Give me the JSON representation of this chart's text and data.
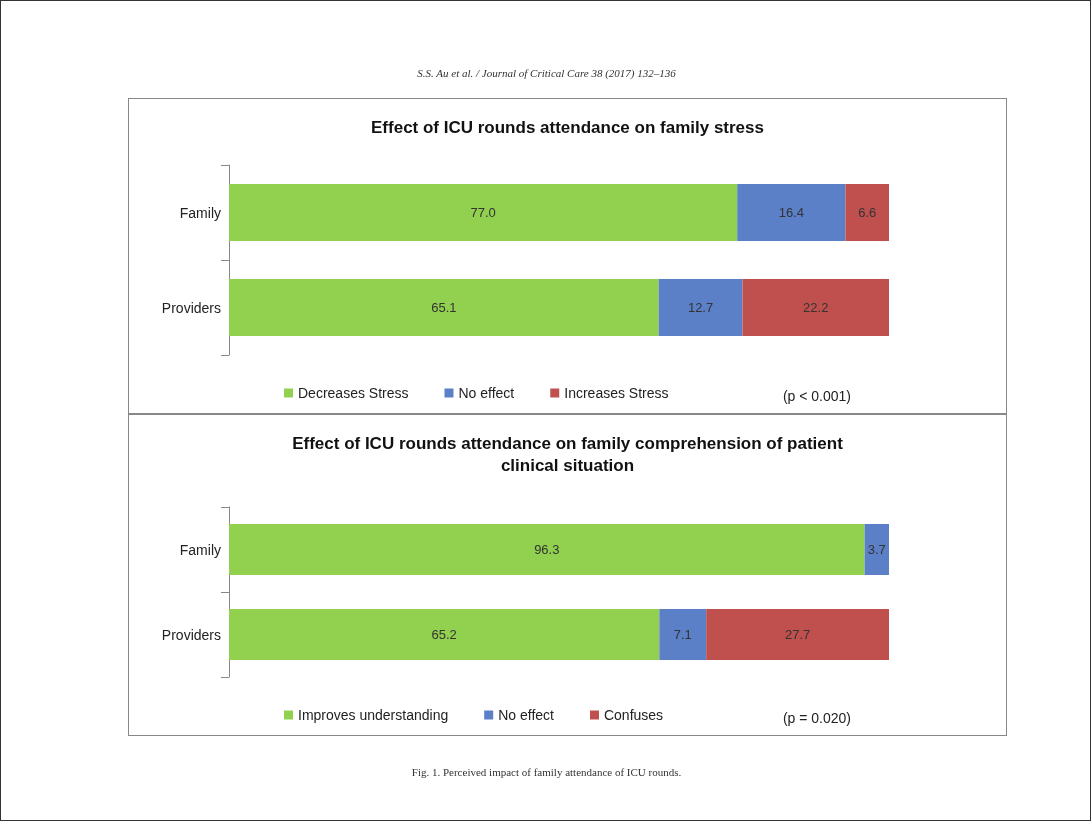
{
  "chart_data": [
    {
      "type": "bar",
      "orientation": "horizontal",
      "stacked": true,
      "title": "Effect of ICU rounds attendance on family stress",
      "categories": [
        "Family",
        "Providers"
      ],
      "series": [
        {
          "name": "Decreases Stress",
          "color": "#92d050",
          "values": [
            77.0,
            65.1
          ],
          "value_labels": [
            "77.0",
            "65.1"
          ]
        },
        {
          "name": "No effect",
          "color": "#5b80c8",
          "values": [
            16.4,
            12.7
          ],
          "value_labels": [
            "16.4",
            "12.7"
          ]
        },
        {
          "name": "Increases Stress",
          "color": "#c0504d",
          "values": [
            6.6,
            22.2
          ],
          "value_labels": [
            "6.6",
            "22.2"
          ]
        }
      ],
      "legend": "bottom",
      "annotations": [
        "S.S. Au et al. / Journal of Critical Care 38 (2017) 132–136",
        "(p < 0.001)"
      ]
    },
    {
      "type": "bar",
      "orientation": "horizontal",
      "stacked": true,
      "title": "Effect of ICU rounds attendance on family comprehension of patient\nclinical situation",
      "categories": [
        "Family",
        "Providers"
      ],
      "series": [
        {
          "name": "Improves understanding",
          "color": "#92d050",
          "values": [
            96.3,
            65.2
          ],
          "value_labels": [
            "96.3",
            "65.2"
          ]
        },
        {
          "name": "No effect",
          "color": "#5b80c8",
          "values": [
            3.7,
            7.1
          ],
          "value_labels": [
            "3.7",
            "7.1"
          ]
        },
        {
          "name": "Confuses",
          "color": "#c0504d",
          "values": [
            null,
            27.7
          ],
          "value_labels": [
            null,
            "27.7"
          ]
        }
      ],
      "legend": "bottom",
      "annotations": [
        "(p = 0.020)",
        "Fig. 1. Perceived impact of family attendance of ICU rounds."
      ]
    }
  ]
}
